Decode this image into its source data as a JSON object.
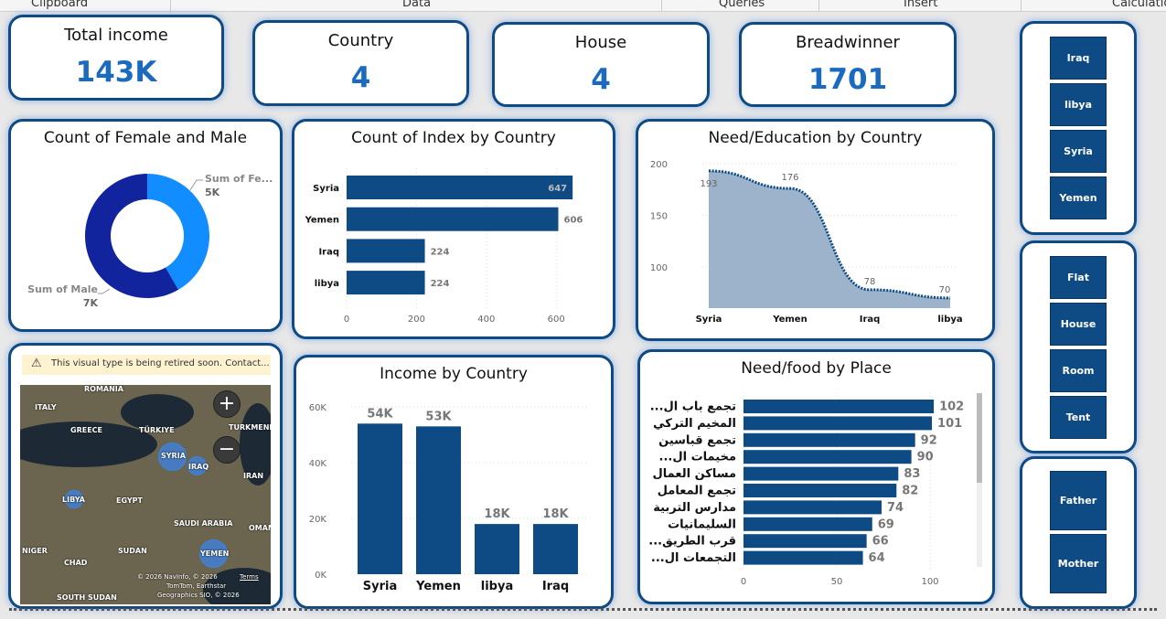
{
  "ribbon": {
    "items": [
      "Clipboard",
      "Data",
      "Queries",
      "Insert",
      "Calculation"
    ]
  },
  "kpis": [
    {
      "title": "Total income",
      "value": "143K"
    },
    {
      "title": "Country",
      "value": "4"
    },
    {
      "title": "House",
      "value": "4"
    },
    {
      "title": "Breadwinner",
      "value": "1701"
    }
  ],
  "slicers": {
    "country": [
      "Iraq",
      "libya",
      "Syria",
      "Yemen"
    ],
    "house": [
      "Flat",
      "House",
      "Room",
      "Tent"
    ],
    "breadwinner": [
      "Father",
      "Mother"
    ]
  },
  "colors": {
    "primary": "#0e4a84",
    "kpi": "#1a6bbf",
    "female": "#118dff",
    "male": "#12239e",
    "area": "#9db3cc"
  },
  "chart_data": [
    {
      "type": "pie",
      "title": "Count of Female and Male",
      "categories": [
        "Sum of Fe...",
        "Sum of Male"
      ],
      "values": [
        5000,
        7000
      ],
      "data_labels": [
        "5K",
        "7K"
      ]
    },
    {
      "type": "bar",
      "orientation": "horizontal",
      "title": "Count of Index by Country",
      "categories": [
        "Syria",
        "Yemen",
        "Iraq",
        "libya"
      ],
      "values": [
        647,
        606,
        224,
        224
      ],
      "xticks": [
        "0",
        "200",
        "400",
        "600"
      ],
      "xlim": [
        0,
        680
      ]
    },
    {
      "type": "area",
      "title": "Need/Education by Country",
      "categories": [
        "Syria",
        "Yemen",
        "Iraq",
        "libya"
      ],
      "values": [
        193,
        176,
        78,
        70
      ],
      "yticks": [
        "100",
        "150",
        "200"
      ],
      "ylim": [
        60,
        205
      ]
    },
    {
      "type": "bar",
      "title": "Income by Country",
      "categories": [
        "Syria",
        "Yemen",
        "libya",
        "Iraq"
      ],
      "values": [
        54000,
        53000,
        18000,
        18000
      ],
      "data_labels": [
        "54K",
        "53K",
        "18K",
        "18K"
      ],
      "yticks": [
        "0K",
        "20K",
        "40K",
        "60K"
      ],
      "ylim": [
        0,
        60000
      ]
    },
    {
      "type": "bar",
      "orientation": "horizontal",
      "title": "Need/food by Place",
      "categories": [
        "...تجمع باب ال",
        "المخيم التركي",
        "تجمع قباسين",
        "...مخيمات ال",
        "مساكن العمال",
        "تجمع المعامل",
        "مدارس التربية",
        "السليمانيات",
        "...قرب الطريق",
        "...التجمعات ال"
      ],
      "values": [
        102,
        101,
        92,
        90,
        83,
        82,
        74,
        69,
        66,
        64
      ],
      "xticks": [
        "0",
        "50",
        "100"
      ],
      "xlim": [
        0,
        110
      ]
    }
  ],
  "map": {
    "warning": "This visual type is being retired soon. Contact...",
    "labels": [
      "ROMANIA",
      "ITALY",
      "GREECE",
      "TÜRKIYE",
      "TURKMENIS",
      "IRAN",
      "EGYPT",
      "SAUDI ARABIA",
      "OMAN",
      "NIGER",
      "CHAD",
      "SUDAN",
      "SOUTH SUDAN"
    ],
    "bubbles": [
      "SYRIA",
      "IRAQ",
      "LIBYA",
      "YEMEN"
    ],
    "attribution": [
      "© 2026 NavInfo, © 2026",
      "TomTom, Earthstar",
      "Geographics SIO, © 2026"
    ],
    "terms": "Terms"
  }
}
